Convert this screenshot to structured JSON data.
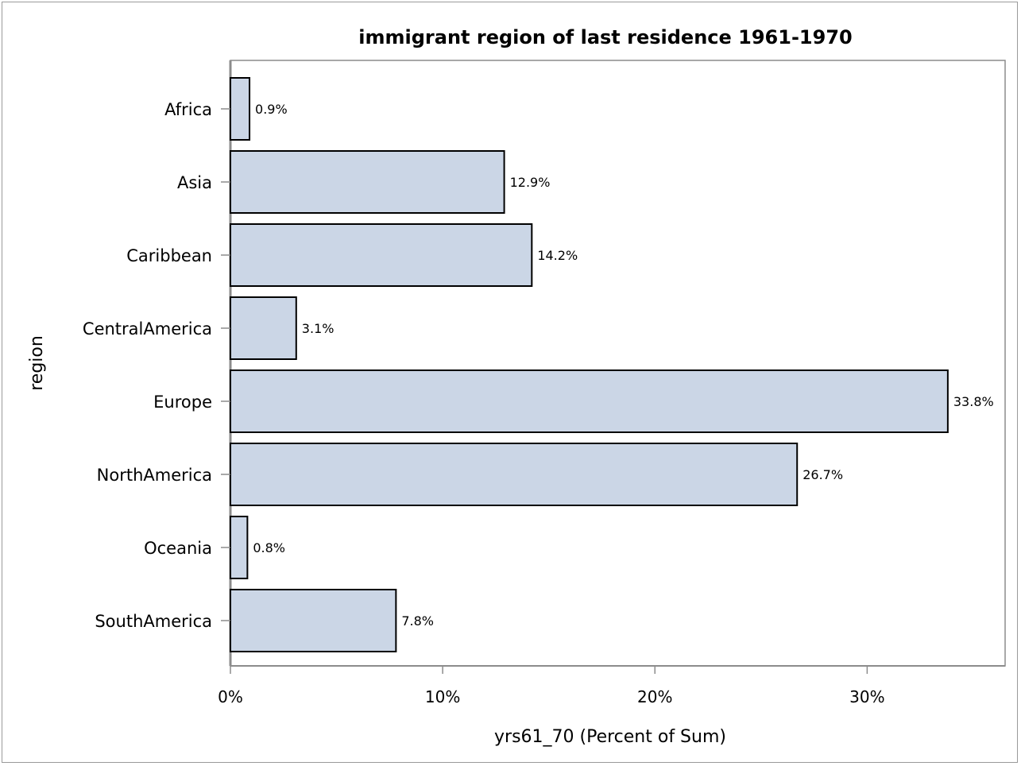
{
  "chart_data": {
    "type": "bar",
    "orientation": "horizontal",
    "title": "immigrant region of last residence 1961-1970",
    "xlabel": "yrs61_70 (Percent of Sum)",
    "ylabel": "region",
    "xlim": [
      0,
      36.5
    ],
    "xticks": [
      0,
      10,
      20,
      30
    ],
    "xtick_labels": [
      "0%",
      "10%",
      "20%",
      "30%"
    ],
    "categories": [
      "Africa",
      "Asia",
      "Caribbean",
      "CentralAmerica",
      "Europe",
      "NorthAmerica",
      "Oceania",
      "SouthAmerica"
    ],
    "values": [
      0.9,
      12.9,
      14.2,
      3.1,
      33.8,
      26.7,
      0.8,
      7.8
    ],
    "value_labels": [
      "0.9%",
      "12.9%",
      "14.2%",
      "3.1%",
      "33.8%",
      "26.7%",
      "0.8%",
      "7.8%"
    ],
    "grid": false,
    "legend": "none",
    "colors": {
      "bar_fill": "#cbd6e6",
      "bar_stroke": "#000000",
      "axis": "#8c8c8c"
    }
  }
}
